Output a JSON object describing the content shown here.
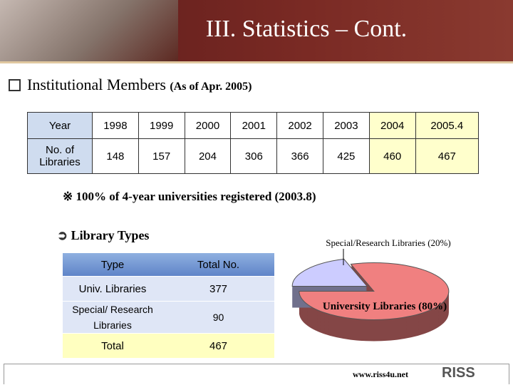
{
  "header": {
    "title": "III. Statistics – Cont."
  },
  "section": {
    "title": "Institutional Members",
    "note": "(As of Apr. 2005)"
  },
  "members_table": {
    "rows": [
      [
        "Year",
        "1998",
        "1999",
        "2000",
        "2001",
        "2002",
        "2003",
        "2004",
        "2005.4"
      ],
      [
        "No. of Libraries",
        "148",
        "157",
        "204",
        "306",
        "366",
        "425",
        "460",
        "467"
      ]
    ]
  },
  "footnote": "※ 100% of 4-year universities registered (2003.8)",
  "types_heading": "Library Types",
  "types_table": {
    "header": [
      "Type",
      "Total No."
    ],
    "rows": [
      [
        "Univ. Libraries",
        "377"
      ],
      [
        "Special/ Research Libraries",
        "90"
      ],
      [
        "Total",
        "467"
      ]
    ]
  },
  "chart_data": {
    "type": "pie",
    "values": [
      80,
      20
    ],
    "value_labels": [
      "University Libraries (80%)",
      "Special/Research Libraries (20%)"
    ],
    "colors": [
      "#f08080",
      "#ccccff"
    ]
  },
  "footer": {
    "url": "www.riss4u.net",
    "logo": "RISS"
  }
}
